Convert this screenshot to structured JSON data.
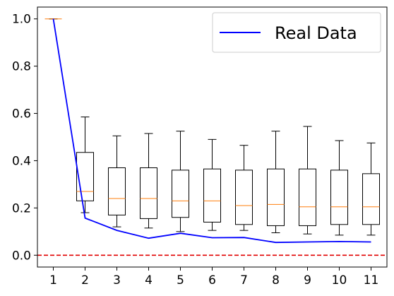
{
  "chart_data": {
    "type": "box",
    "title": "",
    "xlabel": "",
    "ylabel": "",
    "xlim": [
      0.5,
      11.5
    ],
    "ylim": [
      -0.05,
      1.05
    ],
    "x_ticks": [
      1,
      2,
      3,
      4,
      5,
      6,
      7,
      8,
      9,
      10,
      11
    ],
    "x_tick_labels": [
      "1",
      "2",
      "3",
      "4",
      "5",
      "6",
      "7",
      "8",
      "9",
      "10",
      "11"
    ],
    "y_ticks": [
      0.0,
      0.2,
      0.4,
      0.6,
      0.8,
      1.0
    ],
    "y_tick_labels": [
      "0.0",
      "0.2",
      "0.4",
      "0.6",
      "0.8",
      "1.0"
    ],
    "grid": false,
    "boxes": [
      {
        "x": 1,
        "whisker_low": 1.0,
        "q1": 1.0,
        "median": 1.0,
        "q3": 1.0,
        "whisker_high": 1.0
      },
      {
        "x": 2,
        "whisker_low": 0.18,
        "q1": 0.23,
        "median": 0.27,
        "q3": 0.435,
        "whisker_high": 0.585
      },
      {
        "x": 3,
        "whisker_low": 0.12,
        "q1": 0.17,
        "median": 0.24,
        "q3": 0.37,
        "whisker_high": 0.505
      },
      {
        "x": 4,
        "whisker_low": 0.115,
        "q1": 0.155,
        "median": 0.24,
        "q3": 0.37,
        "whisker_high": 0.515
      },
      {
        "x": 5,
        "whisker_low": 0.1,
        "q1": 0.16,
        "median": 0.23,
        "q3": 0.36,
        "whisker_high": 0.525
      },
      {
        "x": 6,
        "whisker_low": 0.105,
        "q1": 0.14,
        "median": 0.23,
        "q3": 0.365,
        "whisker_high": 0.49
      },
      {
        "x": 7,
        "whisker_low": 0.105,
        "q1": 0.13,
        "median": 0.21,
        "q3": 0.36,
        "whisker_high": 0.465
      },
      {
        "x": 8,
        "whisker_low": 0.095,
        "q1": 0.125,
        "median": 0.215,
        "q3": 0.365,
        "whisker_high": 0.525
      },
      {
        "x": 9,
        "whisker_low": 0.09,
        "q1": 0.125,
        "median": 0.205,
        "q3": 0.365,
        "whisker_high": 0.545
      },
      {
        "x": 10,
        "whisker_low": 0.085,
        "q1": 0.13,
        "median": 0.205,
        "q3": 0.36,
        "whisker_high": 0.485
      },
      {
        "x": 11,
        "whisker_low": 0.085,
        "q1": 0.13,
        "median": 0.205,
        "q3": 0.345,
        "whisker_high": 0.475
      }
    ],
    "series": [
      {
        "name": "Real Data",
        "type": "line",
        "color": "#0000ff",
        "x": [
          1,
          2,
          3,
          4,
          5,
          6,
          7,
          8,
          9,
          10,
          11
        ],
        "values": [
          1.0,
          0.157,
          0.105,
          0.072,
          0.093,
          0.074,
          0.075,
          0.054,
          0.056,
          0.058,
          0.056
        ]
      }
    ],
    "reference_line": {
      "y": 0.0,
      "color": "#e00000",
      "style": "dashed"
    },
    "box_color": "#000000",
    "median_color": "#ff7f0e",
    "legend": {
      "position": "top-right",
      "entries": [
        "Real Data"
      ]
    }
  }
}
